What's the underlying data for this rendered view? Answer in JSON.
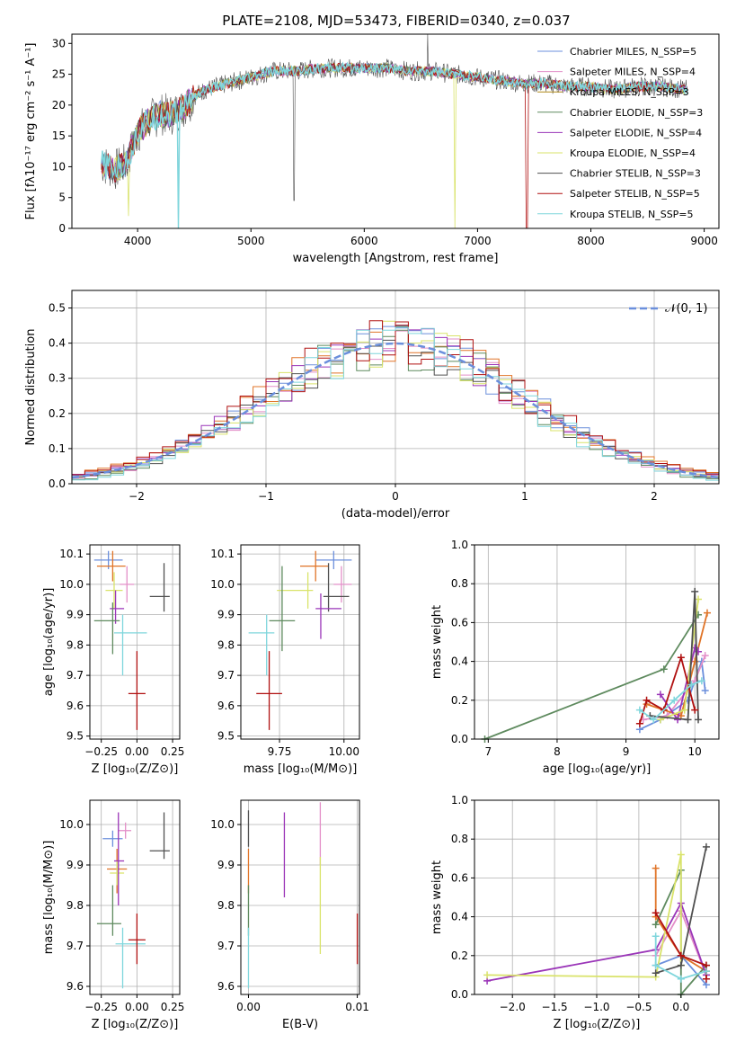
{
  "chart_data": [
    {
      "type": "line",
      "title": "PLATE=2108, MJD=53473, FIBERID=0340, z=0.037",
      "xlabel": "wavelength [Angstrom, rest frame]",
      "ylabel": "Flux [fλ10⁻¹⁷ erg cm⁻² s⁻¹ A⁻¹]",
      "xlim": [
        3420,
        9130
      ],
      "ylim": [
        0,
        31.5
      ],
      "xticks": [
        "4000",
        "5000",
        "6000",
        "7000",
        "8000",
        "9000"
      ],
      "yticks": [
        "0",
        "5",
        "10",
        "15",
        "20",
        "25",
        "30"
      ],
      "grid": false,
      "legend_position": "top-right",
      "series": [
        {
          "name": "Chabrier MILES, N_SSP=5",
          "color": "#6b8fdc"
        },
        {
          "name": "Salpeter MILES, N_SSP=4",
          "color": "#e38fc8"
        },
        {
          "name": "Kroupa MILES, N_SSP=3",
          "color": "#b08a18"
        },
        {
          "name": "Chabrier ELODIE, N_SSP=3",
          "color": "#5e8a5e"
        },
        {
          "name": "Salpeter ELODIE, N_SSP=4",
          "color": "#9a35b8"
        },
        {
          "name": "Kroupa ELODIE, N_SSP=4",
          "color": "#d9e36a"
        },
        {
          "name": "Chabrier STELIB, N_SSP=3",
          "color": "#505050"
        },
        {
          "name": "Salpeter STELIB, N_SSP=5",
          "color": "#b01010"
        },
        {
          "name": "Kroupa STELIB, N_SSP=5",
          "color": "#7fd6dc"
        }
      ],
      "continuum": {
        "x": [
          3680,
          3800,
          3900,
          4000,
          4100,
          4200,
          4300,
          4400,
          4500,
          4600,
          4800,
          5000,
          5200,
          5400,
          5600,
          5800,
          6000,
          6200,
          6400,
          6600,
          6800,
          7000,
          7200,
          7400,
          7600,
          7800,
          8000,
          8200,
          8400,
          8600,
          8850
        ],
        "y": [
          10.5,
          9.5,
          10.5,
          15.5,
          17.5,
          18.5,
          18.5,
          19.5,
          21.5,
          22.5,
          23.5,
          24.5,
          25.5,
          25.5,
          26,
          26,
          26,
          26,
          25.5,
          25.5,
          25,
          24.5,
          24,
          23.5,
          23.5,
          23,
          23,
          22.5,
          23,
          23,
          22.5
        ]
      }
    },
    {
      "type": "bar",
      "xlabel": "(data-model)/error",
      "ylabel": "Normed distribution",
      "xlim": [
        -2.5,
        2.5
      ],
      "ylim": [
        0,
        0.55
      ],
      "xticks": [
        "−2",
        "−1",
        "0",
        "1",
        "2"
      ],
      "yticks": [
        "0.0",
        "0.1",
        "0.2",
        "0.3",
        "0.4",
        "0.5"
      ],
      "grid": true,
      "legend": "𝒩(0, 1)",
      "legend_position": "top-right",
      "bin_width": 0.1,
      "reference_curve": "gaussian mean 0, sigma 1",
      "series": [
        {
          "name": "Chabrier MILES",
          "color": "#6b8fdc",
          "offset": 0.012
        },
        {
          "name": "Salpeter MILES",
          "color": "#e38fc8",
          "offset": -0.01
        },
        {
          "name": "Kroupa MILES",
          "color": "#e07428",
          "offset": 0.02
        },
        {
          "name": "Chabrier ELODIE",
          "color": "#5e8a5e",
          "offset": -0.015
        },
        {
          "name": "Salpeter ELODIE",
          "color": "#9a35b8",
          "offset": 0.008
        },
        {
          "name": "Kroupa ELODIE",
          "color": "#d9e36a",
          "offset": 0.0
        },
        {
          "name": "Chabrier STELIB",
          "color": "#505050",
          "offset": -0.005
        },
        {
          "name": "Salpeter STELIB",
          "color": "#b01010",
          "offset": 0.015
        },
        {
          "name": "Kroupa STELIB",
          "color": "#7fd6dc",
          "offset": -0.02
        }
      ]
    },
    {
      "type": "scatter",
      "xlabel": "Z [log₁₀(Z/Z⊙)]",
      "ylabel": "age  [log₁₀(age/yr)]",
      "xlim": [
        -0.33,
        0.3
      ],
      "ylim": [
        9.49,
        10.13
      ],
      "xticks": [
        "−0.25",
        "0.00",
        "0.25"
      ],
      "yticks": [
        "9.5",
        "9.6",
        "9.7",
        "9.8",
        "9.9",
        "10.0",
        "10.1"
      ],
      "grid": true,
      "points": [
        {
          "x": -0.2,
          "xerr": [
            0.1,
            0.1
          ],
          "y": 10.08,
          "yerr": [
            0.03,
            0.03
          ],
          "color": "#6b8fdc"
        },
        {
          "x": -0.17,
          "xerr": [
            0.11,
            0.09
          ],
          "y": 10.06,
          "yerr": [
            0.05,
            0.05
          ],
          "color": "#e07428"
        },
        {
          "x": -0.07,
          "xerr": [
            0.05,
            0.05
          ],
          "y": 10.0,
          "yerr": [
            0.06,
            0.06
          ],
          "color": "#e38fc8"
        },
        {
          "x": -0.16,
          "xerr": [
            0.06,
            0.06
          ],
          "y": 9.98,
          "yerr": [
            0.06,
            0.06
          ],
          "color": "#d9e36a"
        },
        {
          "x": 0.19,
          "xerr": [
            0.1,
            0.04
          ],
          "y": 9.96,
          "yerr": [
            0.05,
            0.11
          ],
          "color": "#505050"
        },
        {
          "x": -0.15,
          "xerr": [
            0.04,
            0.06
          ],
          "y": 9.92,
          "yerr": [
            0.05,
            0.06
          ],
          "color": "#9a35b8"
        },
        {
          "x": -0.17,
          "xerr": [
            0.13,
            0.05
          ],
          "y": 9.88,
          "yerr": [
            0.11,
            0.06
          ],
          "color": "#5e8a5e"
        },
        {
          "x": -0.1,
          "xerr": [
            0.06,
            0.17
          ],
          "y": 9.84,
          "yerr": [
            0.14,
            0.06
          ],
          "color": "#7fd6dc"
        },
        {
          "x": 0.0,
          "xerr": [
            0.06,
            0.06
          ],
          "y": 9.64,
          "yerr": [
            0.12,
            0.14
          ],
          "color": "#b01010"
        }
      ]
    },
    {
      "type": "scatter",
      "xlabel": "mass [log₁₀(M/M⊙)]",
      "ylabel": "",
      "xlim": [
        9.6,
        10.06
      ],
      "ylim": [
        9.49,
        10.13
      ],
      "xticks": [
        "9.75",
        "10.00"
      ],
      "yticks": [
        "9.5",
        "9.6",
        "9.7",
        "9.8",
        "9.9",
        "10.0",
        "10.1"
      ],
      "grid": true,
      "points": [
        {
          "x": 9.96,
          "xerr": [
            0.07,
            0.07
          ],
          "y": 10.08,
          "yerr": [
            0.03,
            0.03
          ],
          "color": "#6b8fdc"
        },
        {
          "x": 9.89,
          "xerr": [
            0.06,
            0.05
          ],
          "y": 10.06,
          "yerr": [
            0.05,
            0.05
          ],
          "color": "#e07428"
        },
        {
          "x": 9.99,
          "xerr": [
            0.03,
            0.04
          ],
          "y": 10.0,
          "yerr": [
            0.06,
            0.06
          ],
          "color": "#e38fc8"
        },
        {
          "x": 9.86,
          "xerr": [
            0.12,
            0.02
          ],
          "y": 9.98,
          "yerr": [
            0.06,
            0.06
          ],
          "color": "#d9e36a"
        },
        {
          "x": 9.94,
          "xerr": [
            0.02,
            0.08
          ],
          "y": 9.96,
          "yerr": [
            0.05,
            0.11
          ],
          "color": "#505050"
        },
        {
          "x": 9.91,
          "xerr": [
            0.02,
            0.08
          ],
          "y": 9.92,
          "yerr": [
            0.1,
            0.05
          ],
          "color": "#9a35b8"
        },
        {
          "x": 9.76,
          "xerr": [
            0.05,
            0.05
          ],
          "y": 9.88,
          "yerr": [
            0.1,
            0.18
          ],
          "color": "#5e8a5e"
        },
        {
          "x": 9.7,
          "xerr": [
            0.07,
            0.03
          ],
          "y": 9.84,
          "yerr": [
            0.14,
            0.06
          ],
          "color": "#7fd6dc"
        },
        {
          "x": 9.71,
          "xerr": [
            0.05,
            0.05
          ],
          "y": 9.64,
          "yerr": [
            0.12,
            0.14
          ],
          "color": "#b01010"
        }
      ]
    },
    {
      "type": "line",
      "xlabel": "age  [log₁₀(age/yr)]",
      "ylabel": "mass weight",
      "xlim": [
        6.8,
        10.35
      ],
      "ylim": [
        0,
        1.0
      ],
      "xticks": [
        "7",
        "8",
        "9",
        "10"
      ],
      "yticks": [
        "0.0",
        "0.2",
        "0.4",
        "0.6",
        "0.8",
        "1.0"
      ],
      "grid": true,
      "series": [
        {
          "color": "#6b8fdc",
          "x": [
            9.2,
            9.5,
            9.9,
            10.1,
            10.15
          ],
          "y": [
            0.05,
            0.1,
            0.2,
            0.4,
            0.25
          ]
        },
        {
          "color": "#e38fc8",
          "x": [
            9.25,
            9.6,
            10.0,
            10.15
          ],
          "y": [
            0.1,
            0.12,
            0.3,
            0.43
          ]
        },
        {
          "color": "#e07428",
          "x": [
            9.3,
            9.8,
            10.0,
            10.18
          ],
          "y": [
            0.18,
            0.12,
            0.4,
            0.65
          ]
        },
        {
          "color": "#5e8a5e",
          "x": [
            6.95,
            9.55,
            10.05
          ],
          "y": [
            0.0,
            0.36,
            0.64
          ]
        },
        {
          "color": "#9a35b8",
          "x": [
            9.5,
            9.75,
            10.0,
            10.05
          ],
          "y": [
            0.23,
            0.1,
            0.47,
            0.45
          ]
        },
        {
          "color": "#d9e36a",
          "x": [
            9.5,
            9.85,
            10.05
          ],
          "y": [
            0.1,
            0.15,
            0.72
          ]
        },
        {
          "color": "#505050",
          "x": [
            9.35,
            9.9,
            10.0,
            10.05
          ],
          "y": [
            0.12,
            0.1,
            0.76,
            0.1
          ]
        },
        {
          "color": "#b01010",
          "x": [
            9.2,
            9.3,
            9.55,
            9.8,
            10.0
          ],
          "y": [
            0.08,
            0.2,
            0.15,
            0.42,
            0.15
          ]
        },
        {
          "color": "#7fd6dc",
          "x": [
            9.2,
            9.4,
            9.7,
            9.95,
            10.1
          ],
          "y": [
            0.15,
            0.1,
            0.2,
            0.28,
            0.3
          ]
        }
      ]
    },
    {
      "type": "scatter",
      "xlabel": "Z [log₁₀(Z/Z⊙)]",
      "ylabel": "mass [log₁₀(M/M⊙)]",
      "xlim": [
        -0.33,
        0.3
      ],
      "ylim": [
        9.58,
        10.06
      ],
      "xticks": [
        "−0.25",
        "0.00",
        "0.25"
      ],
      "yticks": [
        "9.6",
        "9.7",
        "9.8",
        "9.9",
        "10.0"
      ],
      "grid": true,
      "points": [
        {
          "x": -0.17,
          "xerr": [
            0.07,
            0.07
          ],
          "y": 9.965,
          "yerr": [
            0.02,
            0.02
          ],
          "color": "#6b8fdc"
        },
        {
          "x": -0.08,
          "xerr": [
            0.05,
            0.04
          ],
          "y": 9.985,
          "yerr": [
            0.02,
            0.02
          ],
          "color": "#e38fc8"
        },
        {
          "x": -0.14,
          "xerr": [
            0.07,
            0.07
          ],
          "y": 9.89,
          "yerr": [
            0.06,
            0.05
          ],
          "color": "#e07428"
        },
        {
          "x": -0.14,
          "xerr": [
            0.05,
            0.05
          ],
          "y": 9.88,
          "yerr": [
            0.03,
            0.03
          ],
          "color": "#d9e36a"
        },
        {
          "x": 0.19,
          "xerr": [
            0.1,
            0.04
          ],
          "y": 9.935,
          "yerr": [
            0.02,
            0.095
          ],
          "color": "#505050"
        },
        {
          "x": -0.13,
          "xerr": [
            0.03,
            0.04
          ],
          "y": 9.91,
          "yerr": [
            0.11,
            0.12
          ],
          "color": "#9a35b8"
        },
        {
          "x": -0.17,
          "xerr": [
            0.11,
            0.06
          ],
          "y": 9.755,
          "yerr": [
            0.03,
            0.095
          ],
          "color": "#5e8a5e"
        },
        {
          "x": -0.1,
          "xerr": [
            0.05,
            0.16
          ],
          "y": 9.705,
          "yerr": [
            0.11,
            0.04
          ],
          "color": "#7fd6dc"
        },
        {
          "x": 0.0,
          "xerr": [
            0.06,
            0.06
          ],
          "y": 9.715,
          "yerr": [
            0.06,
            0.065
          ],
          "color": "#b01010"
        }
      ]
    },
    {
      "type": "scatter",
      "xlabel": "E(B-V)",
      "ylabel": "",
      "xlim": [
        -0.0007,
        0.0102
      ],
      "ylim": [
        9.58,
        10.06
      ],
      "xticks": [
        "0.00",
        "0.01"
      ],
      "yticks": [
        "9.6",
        "9.7",
        "9.8",
        "9.9",
        "10.0"
      ],
      "grid": true,
      "points": [
        {
          "x": 0.0,
          "y": 9.965,
          "yerr": [
            0.02,
            0.07
          ],
          "color": "#505050"
        },
        {
          "x": 0.0,
          "y": 9.89,
          "yerr": [
            0.06,
            0.05
          ],
          "color": "#e07428"
        },
        {
          "x": 0.0,
          "y": 9.755,
          "yerr": [
            0.03,
            0.095
          ],
          "color": "#5e8a5e"
        },
        {
          "x": 0.0,
          "y": 9.705,
          "yerr": [
            0.11,
            0.04
          ],
          "color": "#7fd6dc"
        },
        {
          "x": 0.0033,
          "y": 9.91,
          "yerr": [
            0.09,
            0.12
          ],
          "color": "#9a35b8"
        },
        {
          "x": 0.0066,
          "y": 9.98,
          "yerr": [
            0.08,
            0.075
          ],
          "color": "#e38fc8"
        },
        {
          "x": 0.0066,
          "y": 9.8,
          "yerr": [
            0.12,
            0.12
          ],
          "color": "#d9e36a"
        },
        {
          "x": 0.01,
          "y": 9.715,
          "yerr": [
            0.06,
            0.065
          ],
          "color": "#b01010"
        }
      ]
    },
    {
      "type": "line",
      "xlabel": "Z [log₁₀(Z/Z⊙)]",
      "ylabel": "mass weight",
      "xlim": [
        -2.45,
        0.45
      ],
      "ylim": [
        0,
        1.0
      ],
      "xticks": [
        "−2.0",
        "−1.5",
        "−1.0",
        "−0.5",
        "0.0"
      ],
      "yticks": [
        "0.0",
        "0.2",
        "0.4",
        "0.6",
        "0.8",
        "1.0"
      ],
      "grid": true,
      "series": [
        {
          "color": "#6b8fdc",
          "x": [
            -0.3,
            0.0,
            0.3
          ],
          "y": [
            0.15,
            0.2,
            0.05
          ]
        },
        {
          "color": "#e38fc8",
          "x": [
            -0.3,
            0.0,
            0.3
          ],
          "y": [
            0.2,
            0.43,
            0.1
          ]
        },
        {
          "color": "#e07428",
          "x": [
            -0.3,
            -0.3,
            0.0,
            0.3
          ],
          "y": [
            0.65,
            0.4,
            0.2,
            0.12
          ]
        },
        {
          "color": "#5e8a5e",
          "x": [
            -0.3,
            0.0,
            0.0,
            0.3
          ],
          "y": [
            0.36,
            0.64,
            0.0,
            0.15
          ]
        },
        {
          "color": "#9a35b8",
          "x": [
            -2.3,
            -0.3,
            0.0,
            0.3
          ],
          "y": [
            0.07,
            0.23,
            0.47,
            0.1
          ]
        },
        {
          "color": "#d9e36a",
          "x": [
            -2.3,
            -0.3,
            0.0,
            0.0
          ],
          "y": [
            0.1,
            0.09,
            0.72,
            0.15
          ]
        },
        {
          "color": "#505050",
          "x": [
            -0.3,
            0.0,
            0.3
          ],
          "y": [
            0.11,
            0.15,
            0.76
          ]
        },
        {
          "color": "#b01010",
          "x": [
            -0.3,
            0.0,
            0.3,
            0.3
          ],
          "y": [
            0.42,
            0.2,
            0.15,
            0.08
          ]
        },
        {
          "color": "#7fd6dc",
          "x": [
            -0.3,
            -0.3,
            0.0,
            0.3
          ],
          "y": [
            0.3,
            0.15,
            0.08,
            0.12
          ]
        }
      ]
    }
  ]
}
